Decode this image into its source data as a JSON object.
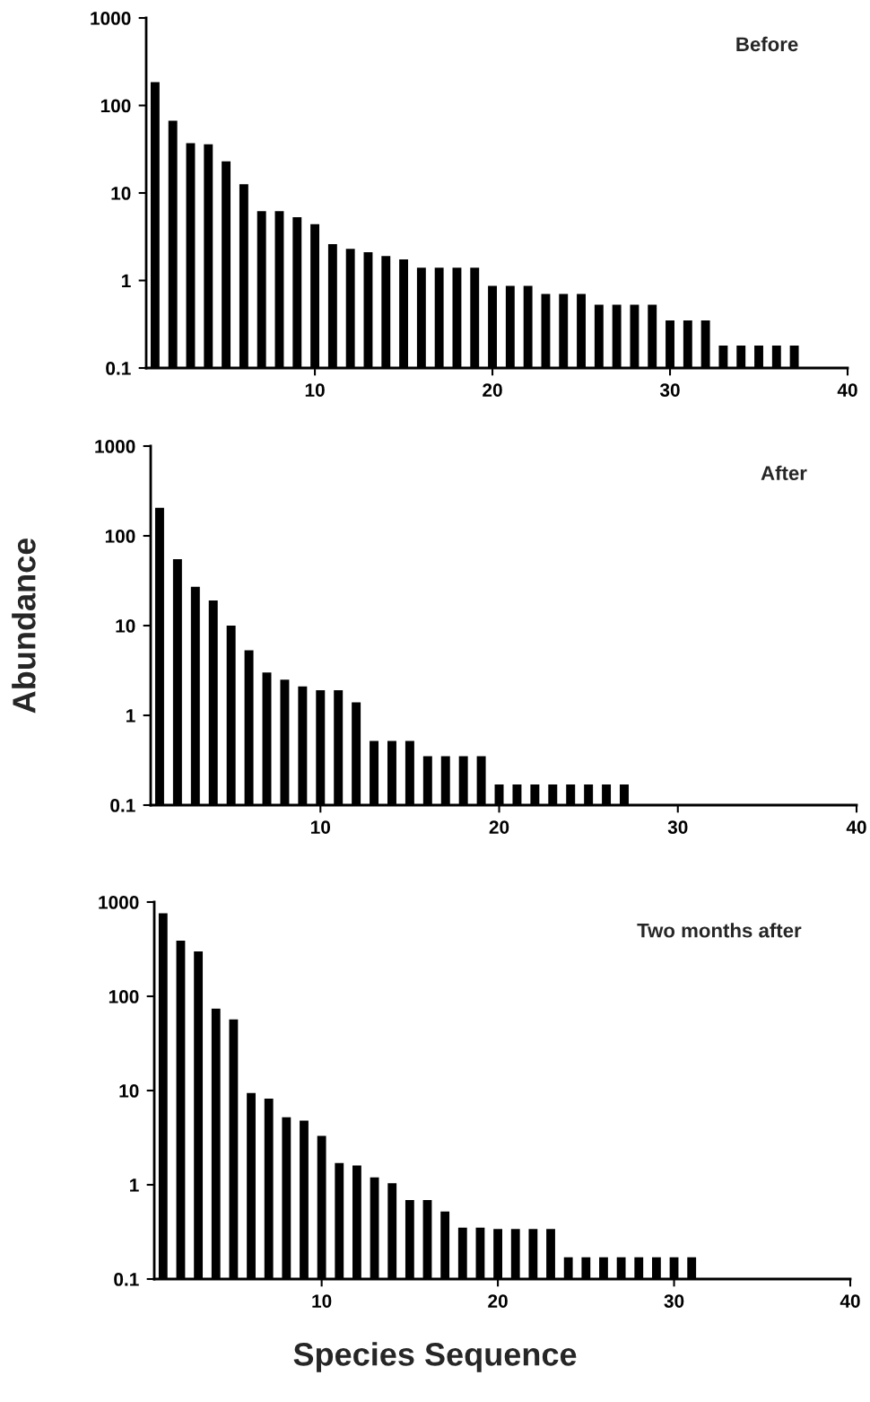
{
  "chart_data": [
    {
      "type": "bar",
      "title": "Before",
      "log": "y",
      "color": "#000000",
      "xlim": [
        0.5,
        40
      ],
      "xticks": [
        10,
        20,
        30,
        40
      ],
      "ylim": [
        0.1,
        1000
      ],
      "yticks": [
        0.1,
        1,
        10,
        100,
        1000
      ],
      "grid": false,
      "legend": false,
      "x": [
        1,
        2,
        3,
        4,
        5,
        6,
        7,
        8,
        9,
        10,
        11,
        12,
        13,
        14,
        15,
        16,
        17,
        18,
        19,
        20,
        21,
        22,
        23,
        24,
        25,
        26,
        27,
        28,
        29,
        30,
        31,
        32,
        33,
        34,
        35,
        36,
        37
      ],
      "values": [
        185,
        67,
        37,
        36,
        23,
        12.6,
        6.2,
        6.2,
        5.3,
        4.4,
        2.6,
        2.3,
        2.1,
        1.9,
        1.74,
        1.4,
        1.4,
        1.4,
        1.4,
        0.87,
        0.87,
        0.87,
        0.7,
        0.7,
        0.7,
        0.53,
        0.53,
        0.53,
        0.53,
        0.35,
        0.35,
        0.35,
        0.18,
        0.18,
        0.18,
        0.18,
        0.18
      ]
    },
    {
      "type": "bar",
      "title": "After",
      "ylabel": "Abundance",
      "log": "y",
      "color": "#000000",
      "xlim": [
        0.5,
        40
      ],
      "xticks": [
        10,
        20,
        30,
        40
      ],
      "ylim": [
        0.1,
        1000
      ],
      "yticks": [
        0.1,
        1,
        10,
        100,
        1000
      ],
      "grid": false,
      "legend": false,
      "x": [
        1,
        2,
        3,
        4,
        5,
        6,
        7,
        8,
        9,
        10,
        11,
        12,
        13,
        14,
        15,
        16,
        17,
        18,
        19,
        20,
        21,
        22,
        23,
        24,
        25,
        26,
        27
      ],
      "values": [
        205,
        55,
        27,
        19,
        10,
        5.3,
        3.0,
        2.5,
        2.1,
        1.9,
        1.9,
        1.4,
        0.52,
        0.52,
        0.52,
        0.35,
        0.35,
        0.35,
        0.35,
        0.17,
        0.17,
        0.17,
        0.17,
        0.17,
        0.17,
        0.17,
        0.17
      ]
    },
    {
      "type": "bar",
      "title": "Two months after",
      "xlabel": "Species Sequence",
      "log": "y",
      "color": "#000000",
      "xlim": [
        0.5,
        40
      ],
      "xticks": [
        10,
        20,
        30,
        40
      ],
      "ylim": [
        0.1,
        1000
      ],
      "yticks": [
        0.1,
        1,
        10,
        100,
        1000
      ],
      "grid": false,
      "legend": false,
      "x": [
        1,
        2,
        3,
        4,
        5,
        6,
        7,
        8,
        9,
        10,
        11,
        12,
        13,
        14,
        15,
        16,
        17,
        18,
        19,
        20,
        21,
        22,
        23,
        24,
        25,
        26,
        27,
        28,
        29,
        30,
        31
      ],
      "values": [
        760,
        390,
        300,
        74,
        57,
        9.4,
        8.2,
        5.2,
        4.8,
        3.3,
        1.7,
        1.6,
        1.2,
        1.04,
        0.69,
        0.69,
        0.52,
        0.35,
        0.35,
        0.34,
        0.34,
        0.34,
        0.34,
        0.17,
        0.17,
        0.17,
        0.17,
        0.17,
        0.17,
        0.17,
        0.17
      ]
    }
  ]
}
